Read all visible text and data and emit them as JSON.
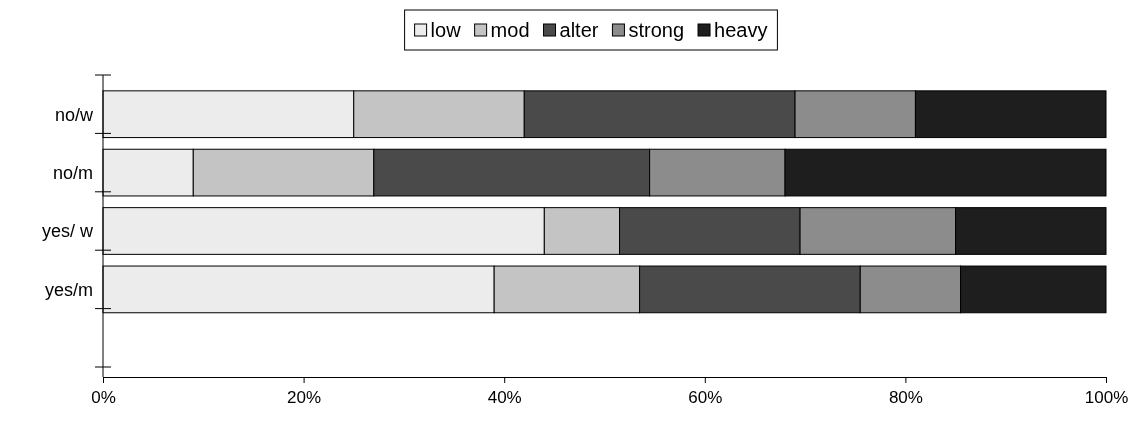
{
  "chart_data": {
    "type": "bar",
    "orientation": "horizontal",
    "stacked": true,
    "categories": [
      "no/w",
      "no/m",
      "yes/ w",
      "yes/m",
      null
    ],
    "series": [
      {
        "name": "low",
        "color": "#ececec",
        "values": [
          25,
          9,
          44,
          39,
          null
        ]
      },
      {
        "name": "mod",
        "color": "#c4c4c4",
        "values": [
          17,
          18,
          7.5,
          14.5,
          null
        ]
      },
      {
        "name": "alter",
        "color": "#4a4a4a",
        "values": [
          27,
          27.5,
          18,
          22,
          null
        ]
      },
      {
        "name": "strong",
        "color": "#8c8c8c",
        "values": [
          12,
          13.5,
          15.5,
          10,
          null
        ]
      },
      {
        "name": "heavy",
        "color": "#1e1e1e",
        "values": [
          19,
          32,
          15,
          14.5,
          null
        ]
      }
    ],
    "xlim": [
      0,
      100
    ],
    "xticks": [
      {
        "value": 0,
        "label": "0%"
      },
      {
        "value": 20,
        "label": "20%"
      },
      {
        "value": 40,
        "label": "40%"
      },
      {
        "value": 60,
        "label": "60%"
      },
      {
        "value": 80,
        "label": "80%"
      },
      {
        "value": 100,
        "label": "100%"
      }
    ],
    "legend": "top",
    "grid": false
  }
}
